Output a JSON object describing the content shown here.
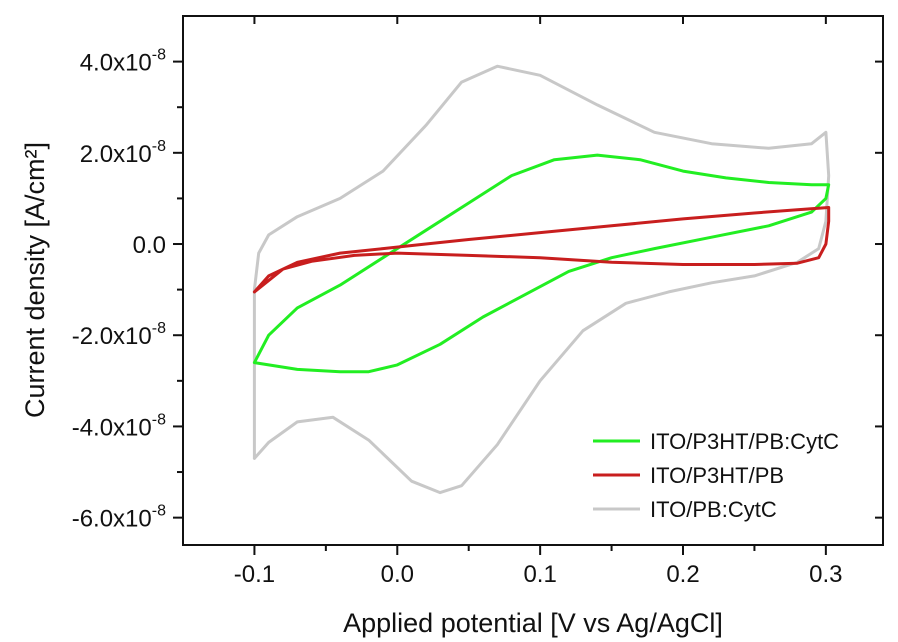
{
  "chart_data": {
    "type": "line",
    "xlabel": "Applied potential [V vs Ag/AgCl]",
    "ylabel": "Current density [A/cm²]",
    "xlim": [
      -0.15,
      0.34
    ],
    "ylim": [
      -6.6e-08,
      5e-08
    ],
    "x_ticks": [
      {
        "value": -0.1,
        "label": "-0.1"
      },
      {
        "value": 0.0,
        "label": "0.0"
      },
      {
        "value": 0.1,
        "label": "0.1"
      },
      {
        "value": 0.2,
        "label": "0.2"
      },
      {
        "value": 0.3,
        "label": "0.3"
      }
    ],
    "y_ticks": [
      {
        "value": 4e-08,
        "mantissa": "4.0x10",
        "exp": "-8"
      },
      {
        "value": 2e-08,
        "mantissa": "2.0x10",
        "exp": "-8"
      },
      {
        "value": 0,
        "mantissa": "0.0",
        "exp": ""
      },
      {
        "value": -2e-08,
        "mantissa": "-2.0x10",
        "exp": "-8"
      },
      {
        "value": -4e-08,
        "mantissa": "-4.0x10",
        "exp": "-8"
      },
      {
        "value": -6e-08,
        "mantissa": "-6.0x10",
        "exp": "-8"
      }
    ],
    "legend_position": "bottom-right",
    "grid": false,
    "series": [
      {
        "name": "ITO/PB:CytC",
        "color": "#c8c8c8",
        "points": [
          [
            -0.1,
            -4.7e-08
          ],
          [
            -0.1,
            -3e-08
          ],
          [
            -0.1,
            -1e-08
          ],
          [
            -0.097,
            -2e-09
          ],
          [
            -0.09,
            2e-09
          ],
          [
            -0.07,
            6e-09
          ],
          [
            -0.04,
            1e-08
          ],
          [
            -0.01,
            1.6e-08
          ],
          [
            0.02,
            2.6e-08
          ],
          [
            0.045,
            3.55e-08
          ],
          [
            0.07,
            3.9e-08
          ],
          [
            0.1,
            3.7e-08
          ],
          [
            0.14,
            3.05e-08
          ],
          [
            0.18,
            2.45e-08
          ],
          [
            0.22,
            2.2e-08
          ],
          [
            0.26,
            2.1e-08
          ],
          [
            0.29,
            2.2e-08
          ],
          [
            0.3,
            2.45e-08
          ],
          [
            0.302,
            1.5e-08
          ],
          [
            0.3,
            5e-09
          ],
          [
            0.295,
            -1e-09
          ],
          [
            0.28,
            -4e-09
          ],
          [
            0.25,
            -7e-09
          ],
          [
            0.22,
            -8.5e-09
          ],
          [
            0.19,
            -1.05e-08
          ],
          [
            0.16,
            -1.3e-08
          ],
          [
            0.13,
            -1.9e-08
          ],
          [
            0.1,
            -3e-08
          ],
          [
            0.07,
            -4.4e-08
          ],
          [
            0.045,
            -5.3e-08
          ],
          [
            0.03,
            -5.45e-08
          ],
          [
            0.01,
            -5.2e-08
          ],
          [
            -0.02,
            -4.3e-08
          ],
          [
            -0.045,
            -3.8e-08
          ],
          [
            -0.07,
            -3.9e-08
          ],
          [
            -0.09,
            -4.35e-08
          ],
          [
            -0.1,
            -4.7e-08
          ]
        ]
      },
      {
        "name": "ITO/P3HT/PB:CytC",
        "color": "#22ee22",
        "points": [
          [
            -0.1,
            -2.6e-08
          ],
          [
            -0.09,
            -2e-08
          ],
          [
            -0.07,
            -1.4e-08
          ],
          [
            -0.04,
            -9e-09
          ],
          [
            -0.01,
            -3e-09
          ],
          [
            0.02,
            3e-09
          ],
          [
            0.05,
            9e-09
          ],
          [
            0.08,
            1.5e-08
          ],
          [
            0.11,
            1.85e-08
          ],
          [
            0.14,
            1.95e-08
          ],
          [
            0.17,
            1.85e-08
          ],
          [
            0.2,
            1.6e-08
          ],
          [
            0.23,
            1.45e-08
          ],
          [
            0.26,
            1.35e-08
          ],
          [
            0.29,
            1.3e-08
          ],
          [
            0.302,
            1.3e-08
          ],
          [
            0.3,
            1e-08
          ],
          [
            0.29,
            7e-09
          ],
          [
            0.26,
            4e-09
          ],
          [
            0.22,
            1.5e-09
          ],
          [
            0.18,
            -1e-09
          ],
          [
            0.15,
            -3e-09
          ],
          [
            0.12,
            -6e-09
          ],
          [
            0.09,
            -1.1e-08
          ],
          [
            0.06,
            -1.6e-08
          ],
          [
            0.03,
            -2.2e-08
          ],
          [
            0.0,
            -2.65e-08
          ],
          [
            -0.02,
            -2.8e-08
          ],
          [
            -0.04,
            -2.8e-08
          ],
          [
            -0.07,
            -2.75e-08
          ],
          [
            -0.1,
            -2.6e-08
          ]
        ]
      },
      {
        "name": "ITO/P3HT/PB",
        "color": "#c81e1e",
        "points": [
          [
            -0.1,
            -1.05e-08
          ],
          [
            -0.09,
            -7e-09
          ],
          [
            -0.07,
            -4e-09
          ],
          [
            -0.04,
            -2e-09
          ],
          [
            -0.01,
            -1e-09
          ],
          [
            0.02,
            0.0
          ],
          [
            0.05,
            1e-09
          ],
          [
            0.1,
            2.5e-09
          ],
          [
            0.15,
            4e-09
          ],
          [
            0.2,
            5.5e-09
          ],
          [
            0.25,
            6.8e-09
          ],
          [
            0.28,
            7.5e-09
          ],
          [
            0.302,
            8e-09
          ],
          [
            0.302,
            5e-09
          ],
          [
            0.3,
            0.0
          ],
          [
            0.295,
            -3e-09
          ],
          [
            0.28,
            -4.2e-09
          ],
          [
            0.25,
            -4.5e-09
          ],
          [
            0.2,
            -4.5e-09
          ],
          [
            0.15,
            -4e-09
          ],
          [
            0.1,
            -3e-09
          ],
          [
            0.05,
            -2.5e-09
          ],
          [
            0.0,
            -2e-09
          ],
          [
            -0.03,
            -2.5e-09
          ],
          [
            -0.06,
            -3.8e-09
          ],
          [
            -0.08,
            -5.5e-09
          ],
          [
            -0.1,
            -1.05e-08
          ]
        ]
      }
    ],
    "legend_order": [
      "ITO/P3HT/PB:CytC",
      "ITO/P3HT/PB",
      "ITO/PB:CytC"
    ]
  }
}
